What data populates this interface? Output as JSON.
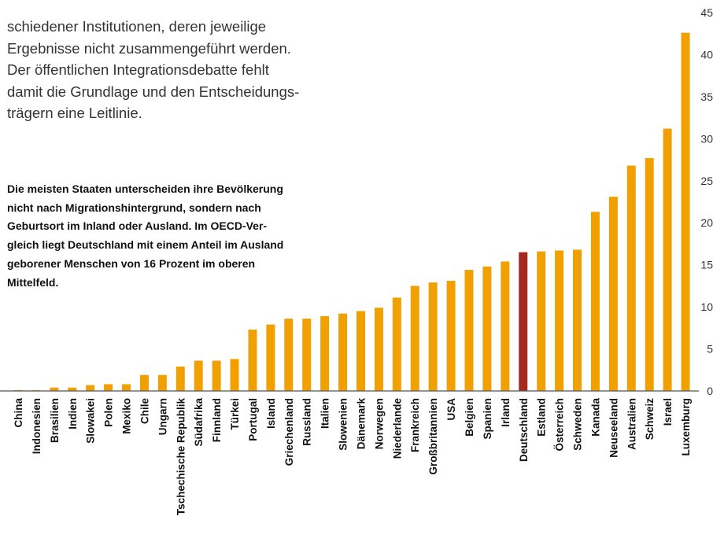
{
  "intro_lines": [
    "schiedener Institutionen, deren jeweilige",
    "Ergebnisse nicht zusammengeführt werden.",
    "Der öffentlichen Integrationsdebatte fehlt",
    "damit die Grundlage und den Entscheidungs-",
    "trägern eine Leitlinie."
  ],
  "note_lines": [
    "Die meisten Staaten unterscheiden ihre Bevölkerung",
    "nicht nach Migrationshintergrund, sondern nach",
    "Geburtsort im Inland oder Ausland. Im OECD-Ver-",
    "gleich liegt Deutschland mit einem Anteil im Ausland",
    "geborener Menschen von 16 Prozent im oberen",
    "Mittelfeld."
  ],
  "chart_data": {
    "type": "bar",
    "categories": [
      "China",
      "Indonesien",
      "Brasilien",
      "Indien",
      "Slowakei",
      "Polen",
      "Mexiko",
      "Chile",
      "Ungarn",
      "Tschechische Republik",
      "Südafrika",
      "Finnland",
      "Türkei",
      "Portugal",
      "Island",
      "Griechenland",
      "Russland",
      "Italien",
      "Slowenien",
      "Dänemark",
      "Norwegen",
      "Niederlande",
      "Frankreich",
      "Großbritannien",
      "USA",
      "Belgien",
      "Spanien",
      "Irland",
      "Deutschland",
      "Estland",
      "Österreich",
      "Schweden",
      "Kanada",
      "Neuseeland",
      "Australien",
      "Schweiz",
      "Israel",
      "Luxemburg"
    ],
    "values": [
      0.1,
      0.1,
      0.4,
      0.4,
      0.7,
      0.8,
      0.8,
      1.9,
      1.9,
      2.9,
      3.6,
      3.6,
      3.8,
      7.3,
      7.9,
      8.6,
      8.6,
      8.9,
      9.2,
      9.5,
      9.9,
      11.1,
      12.5,
      12.9,
      13.1,
      14.4,
      14.8,
      15.4,
      16.5,
      16.6,
      16.7,
      16.8,
      21.3,
      23.1,
      26.8,
      27.7,
      31.2,
      42.6
    ],
    "colors": [
      "#f0a000",
      "#f0a000",
      "#f0a000",
      "#f0a000",
      "#f0a000",
      "#f0a000",
      "#f0a000",
      "#f0a000",
      "#f0a000",
      "#f0a000",
      "#f0a000",
      "#f0a000",
      "#f0a000",
      "#f0a000",
      "#f0a000",
      "#f0a000",
      "#f0a000",
      "#f0a000",
      "#f0a000",
      "#f0a000",
      "#f0a000",
      "#f0a000",
      "#f0a000",
      "#f0a000",
      "#f0a000",
      "#f0a000",
      "#f0a000",
      "#f0a000",
      "#a5291f",
      "#f0a000",
      "#f0a000",
      "#f0a000",
      "#f0a000",
      "#f0a000",
      "#f0a000",
      "#f0a000",
      "#f0a000",
      "#f0a000"
    ],
    "ylim": [
      0,
      45
    ],
    "yticks": [
      0,
      5,
      10,
      15,
      20,
      25,
      30,
      35,
      40,
      45
    ],
    "grid": false
  }
}
